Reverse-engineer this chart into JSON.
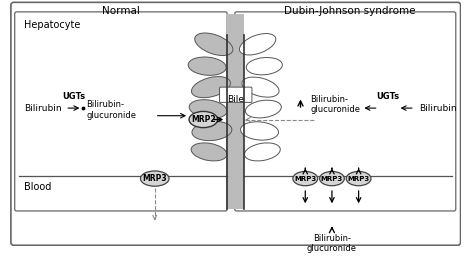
{
  "fig_width": 4.74,
  "fig_height": 2.57,
  "dpi": 100,
  "bg_color": "#ffffff",
  "border_color": "#444444",
  "gray_fill": "#bbbbbb",
  "light_gray": "#d5d5d5",
  "title_normal": "Normal",
  "title_djs": "Dubin-Johnson syndrome",
  "label_hepatocyte": "Hepatocyte",
  "label_blood": "Blood",
  "label_bile": "Bile",
  "label_mrp2": "MRP2",
  "label_mrp3": "MRP3",
  "label_bilirubin": "Bilirubin",
  "label_ugts": "UGTs",
  "label_bilgluc_l1": "Bilirubin-",
  "label_bilgluc_l2": "glucuronide"
}
